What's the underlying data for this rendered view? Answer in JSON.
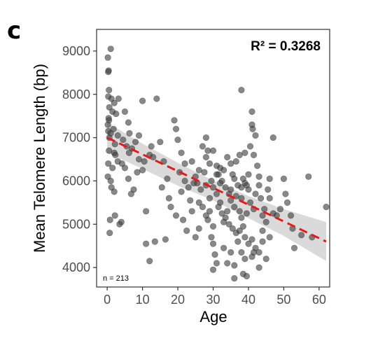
{
  "panel_label": "c",
  "chart_data": {
    "type": "scatter",
    "xlabel": "Age",
    "ylabel": "Mean Telomere Length (bp)",
    "xlim": [
      -3,
      63
    ],
    "ylim": [
      3550,
      9500
    ],
    "xticks": [
      0,
      10,
      20,
      30,
      40,
      50,
      60
    ],
    "yticks": [
      4000,
      5000,
      6000,
      7000,
      8000,
      9000
    ],
    "grid": false,
    "annotations": {
      "r_squared": "R² = 0.3268",
      "n_label": "n = 213"
    },
    "regression": {
      "style": "dashed",
      "color": "#e41a1c",
      "line": [
        [
          0,
          7000
        ],
        [
          62,
          4600
        ]
      ],
      "confidence_band": {
        "color": "#d3d3d3",
        "upper": [
          [
            0,
            7350
          ],
          [
            10,
            6860
          ],
          [
            20,
            6420
          ],
          [
            30,
            6010
          ],
          [
            40,
            5650
          ],
          [
            50,
            5350
          ],
          [
            62,
            5050
          ]
        ],
        "lower": [
          [
            0,
            6650
          ],
          [
            10,
            6280
          ],
          [
            20,
            5890
          ],
          [
            30,
            5550
          ],
          [
            40,
            5140
          ],
          [
            50,
            4730
          ],
          [
            62,
            4150
          ]
        ]
      }
    },
    "points_color": "#3f3f3f",
    "points": [
      [
        0.2,
        8850
      ],
      [
        0.4,
        8550
      ],
      [
        0.3,
        8520
      ],
      [
        1.0,
        9050
      ],
      [
        0.5,
        8100
      ],
      [
        0.3,
        7950
      ],
      [
        1.2,
        7900
      ],
      [
        2.0,
        7800
      ],
      [
        0.6,
        7700
      ],
      [
        1.5,
        7600
      ],
      [
        2.5,
        7550
      ],
      [
        3.2,
        7900
      ],
      [
        0.4,
        7450
      ],
      [
        0.5,
        7400
      ],
      [
        0.2,
        7300
      ],
      [
        0.3,
        7150
      ],
      [
        1.0,
        7100
      ],
      [
        0.6,
        7000
      ],
      [
        1.8,
        7200
      ],
      [
        2.2,
        6850
      ],
      [
        3.0,
        7050
      ],
      [
        0.5,
        6700
      ],
      [
        2.0,
        6650
      ],
      [
        2.3,
        6600
      ],
      [
        0.3,
        6400
      ],
      [
        1.5,
        6300
      ],
      [
        3.0,
        6450
      ],
      [
        0.2,
        6100
      ],
      [
        1.0,
        6000
      ],
      [
        1.2,
        5850
      ],
      [
        2.0,
        5750
      ],
      [
        2.2,
        5200
      ],
      [
        0.8,
        5100
      ],
      [
        0.7,
        4800
      ],
      [
        4.0,
        5050
      ],
      [
        5.0,
        7600
      ],
      [
        6.0,
        7350
      ],
      [
        4.5,
        6950
      ],
      [
        5.5,
        6800
      ],
      [
        6.3,
        7100
      ],
      [
        7.0,
        6750
      ],
      [
        6.2,
        6650
      ],
      [
        5.0,
        6300
      ],
      [
        6.0,
        6050
      ],
      [
        8.0,
        6900
      ],
      [
        9.0,
        6500
      ],
      [
        10.0,
        6250
      ],
      [
        10.5,
        6450
      ],
      [
        12.0,
        6600
      ],
      [
        12.5,
        6800
      ],
      [
        10.0,
        7850
      ],
      [
        14.0,
        7900
      ],
      [
        15.0,
        6900
      ],
      [
        16.0,
        6450
      ],
      [
        17.0,
        6050
      ],
      [
        15.5,
        5850
      ],
      [
        17.5,
        5600
      ],
      [
        11.0,
        5300
      ],
      [
        11.0,
        4550
      ],
      [
        13.5,
        4600
      ],
      [
        12.0,
        4150
      ],
      [
        16.5,
        4650
      ],
      [
        19.0,
        7400
      ],
      [
        19.5,
        7200
      ],
      [
        20.0,
        6950
      ],
      [
        21.0,
        6650
      ],
      [
        20.5,
        6200
      ],
      [
        22.0,
        6000
      ],
      [
        23.0,
        5850
      ],
      [
        24.0,
        6450
      ],
      [
        23.5,
        5550
      ],
      [
        25.0,
        6100
      ],
      [
        25.5,
        5950
      ],
      [
        26.0,
        5500
      ],
      [
        27.0,
        6800
      ],
      [
        28.0,
        6550
      ],
      [
        28.5,
        6700
      ],
      [
        29.0,
        6400
      ],
      [
        27.5,
        6200
      ],
      [
        26.5,
        5800
      ],
      [
        28.0,
        5900
      ],
      [
        29.5,
        6000
      ],
      [
        30.0,
        5850
      ],
      [
        27.0,
        5400
      ],
      [
        28.0,
        5200
      ],
      [
        28.5,
        5100
      ],
      [
        29.0,
        5300
      ],
      [
        30.0,
        4950
      ],
      [
        29.5,
        4700
      ],
      [
        25.0,
        4700
      ],
      [
        19.5,
        5200
      ],
      [
        21.5,
        5100
      ],
      [
        22.5,
        4850
      ],
      [
        26.0,
        4900
      ],
      [
        28.0,
        7000
      ],
      [
        30.0,
        6700
      ],
      [
        31.0,
        6350
      ],
      [
        31.5,
        6150
      ],
      [
        32.0,
        6300
      ],
      [
        33.0,
        6250
      ],
      [
        32.5,
        6000
      ],
      [
        34.0,
        6550
      ],
      [
        35.0,
        6400
      ],
      [
        35.5,
        6150
      ],
      [
        36.5,
        6450
      ],
      [
        36.0,
        6050
      ],
      [
        33.5,
        5850
      ],
      [
        34.5,
        5700
      ],
      [
        35.0,
        5800
      ],
      [
        36.5,
        5650
      ],
      [
        37.0,
        5900
      ],
      [
        38.0,
        5850
      ],
      [
        38.5,
        6050
      ],
      [
        39.0,
        5950
      ],
      [
        39.5,
        5900
      ],
      [
        40.0,
        5800
      ],
      [
        37.5,
        6600
      ],
      [
        38.0,
        8100
      ],
      [
        39.0,
        6650
      ],
      [
        40.5,
        6800
      ],
      [
        41.0,
        7600
      ],
      [
        41.0,
        7300
      ],
      [
        41.2,
        7200
      ],
      [
        42.0,
        7050
      ],
      [
        41.5,
        6600
      ],
      [
        42.5,
        6350
      ],
      [
        43.0,
        6100
      ],
      [
        42.0,
        5700
      ],
      [
        43.5,
        5600
      ],
      [
        40.5,
        5500
      ],
      [
        41.5,
        5350
      ],
      [
        39.5,
        5250
      ],
      [
        38.0,
        5150
      ],
      [
        37.5,
        5300
      ],
      [
        36.0,
        5400
      ],
      [
        35.0,
        5550
      ],
      [
        34.0,
        5300
      ],
      [
        33.5,
        5150
      ],
      [
        32.0,
        5500
      ],
      [
        31.0,
        5700
      ],
      [
        31.5,
        5400
      ],
      [
        32.5,
        5250
      ],
      [
        33.0,
        5050
      ],
      [
        34.5,
        5000
      ],
      [
        35.5,
        4900
      ],
      [
        36.5,
        4800
      ],
      [
        37.5,
        4850
      ],
      [
        38.5,
        4950
      ],
      [
        39.0,
        4700
      ],
      [
        40.0,
        4550
      ],
      [
        41.0,
        4650
      ],
      [
        42.0,
        4450
      ],
      [
        43.0,
        4350
      ],
      [
        44.0,
        4850
      ],
      [
        45.0,
        5050
      ],
      [
        44.5,
        5350
      ],
      [
        45.5,
        5800
      ],
      [
        46.0,
        5600
      ],
      [
        47.0,
        5250
      ],
      [
        44.0,
        5200
      ],
      [
        30.0,
        4550
      ],
      [
        30.5,
        4300
      ],
      [
        31.0,
        4100
      ],
      [
        30.0,
        3950
      ],
      [
        33.0,
        4450
      ],
      [
        34.0,
        4100
      ],
      [
        35.0,
        4350
      ],
      [
        36.0,
        4050
      ],
      [
        36.0,
        3750
      ],
      [
        37.0,
        4600
      ],
      [
        38.0,
        4350
      ],
      [
        39.0,
        4200
      ],
      [
        38.5,
        3850
      ],
      [
        39.5,
        3800
      ],
      [
        41.0,
        4250
      ],
      [
        41.5,
        4350
      ],
      [
        43.0,
        4000
      ],
      [
        44.0,
        4600
      ],
      [
        45.0,
        4200
      ],
      [
        46.0,
        4700
      ],
      [
        46.0,
        6050
      ],
      [
        47.0,
        7000
      ],
      [
        48.0,
        5200
      ],
      [
        49.0,
        5350
      ],
      [
        50.0,
        6050
      ],
      [
        50.5,
        5700
      ],
      [
        51.0,
        5500
      ],
      [
        52.0,
        5200
      ],
      [
        53.0,
        4450
      ],
      [
        55.0,
        4750
      ],
      [
        57.0,
        6100
      ],
      [
        62.0,
        5400
      ],
      [
        58.0,
        4700
      ],
      [
        52.5,
        4900
      ],
      [
        31.0,
        6150
      ],
      [
        32.0,
        5950
      ],
      [
        29.0,
        5600
      ],
      [
        24.0,
        5300
      ],
      [
        21.0,
        5750
      ],
      [
        18.0,
        5400
      ],
      [
        13.0,
        6550
      ],
      [
        9.0,
        7050
      ],
      [
        8.5,
        6200
      ],
      [
        7.5,
        5800
      ],
      [
        6.8,
        5700
      ],
      [
        3.5,
        5000
      ],
      [
        4.2,
        6400
      ],
      [
        22.0,
        6400
      ],
      [
        24.5,
        5950
      ],
      [
        26.0,
        6250
      ],
      [
        38.0,
        5600
      ],
      [
        43.0,
        5900
      ],
      [
        40.0,
        6150
      ]
    ]
  }
}
